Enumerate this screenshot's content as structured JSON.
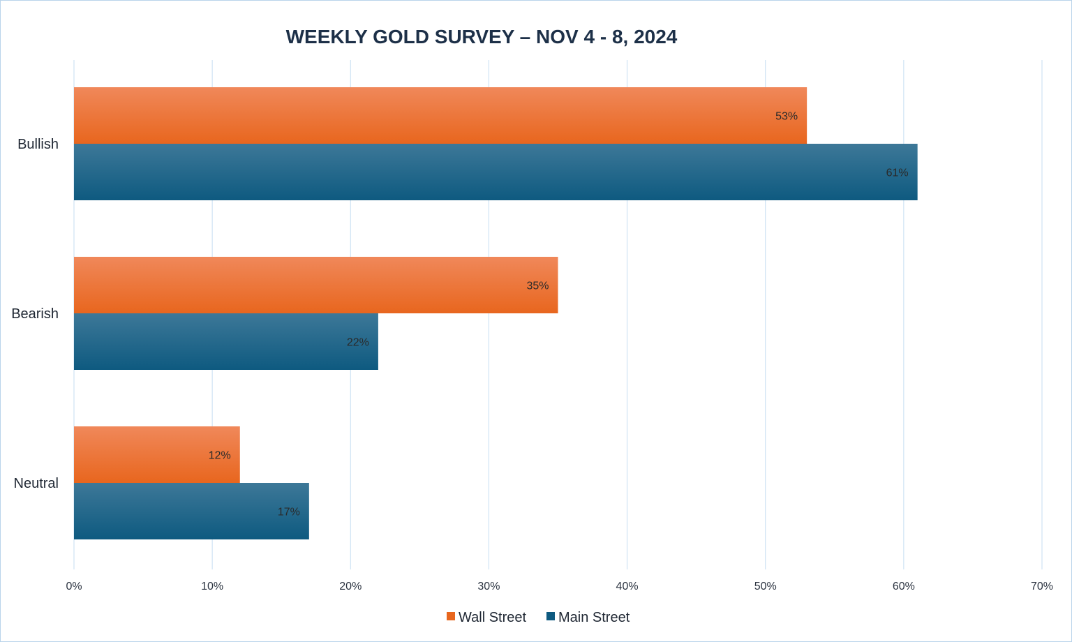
{
  "chart_data": {
    "type": "bar",
    "orientation": "horizontal",
    "title": "WEEKLY GOLD SURVEY – NOV 4 - 8, 2024",
    "categories": [
      "Bullish",
      "Bearish",
      "Neutral"
    ],
    "series": [
      {
        "name": "Wall Street",
        "values": [
          53,
          35,
          12
        ],
        "data_labels": [
          "53%",
          "35%",
          "12%"
        ],
        "color": "#e8661e",
        "color_light": "#f0885a"
      },
      {
        "name": "Main Street",
        "values": [
          61,
          22,
          17
        ],
        "data_labels": [
          "61%",
          "22%",
          "17%"
        ],
        "color": "#0e5a80",
        "color_light": "#3d7898"
      }
    ],
    "x_ticks": [
      "0%",
      "10%",
      "20%",
      "30%",
      "40%",
      "50%",
      "60%",
      "70%"
    ],
    "xlim": [
      0,
      70
    ],
    "grid": "vertical",
    "legend_position": "bottom"
  }
}
